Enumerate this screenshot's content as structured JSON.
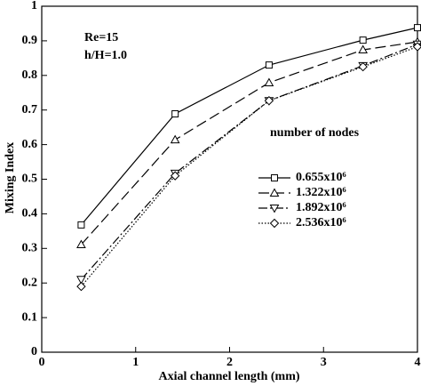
{
  "chart_data": {
    "type": "line",
    "annotations": [
      "Re=15",
      "h/H=1.0"
    ],
    "legend_title": "number of nodes",
    "x_label": "Axial channel length (mm)",
    "y_label": "Mixing Index",
    "xlim": [
      0,
      4
    ],
    "xticks": [
      0,
      1,
      2,
      3,
      4
    ],
    "ylim": [
      0,
      1
    ],
    "yticks": [
      0,
      0.1,
      0.2,
      0.3,
      0.4,
      0.5,
      0.6,
      0.7,
      0.8,
      0.9,
      1
    ],
    "x": [
      0.42,
      1.42,
      2.42,
      3.42,
      4
    ],
    "series": [
      {
        "name": "0.655x10⁶",
        "color": "#000000",
        "dash": "solid",
        "marker": "square",
        "values": [
          0.368,
          0.689,
          0.83,
          0.902,
          0.938
        ]
      },
      {
        "name": "1.322x10⁶",
        "color": "#000000",
        "dash": "dashed",
        "marker": "triangle-up",
        "values": [
          0.311,
          0.614,
          0.779,
          0.874,
          0.897
        ]
      },
      {
        "name": "1.892x10⁶",
        "color": "#000000",
        "dash": "dashdot",
        "marker": "triangle-down",
        "values": [
          0.21,
          0.517,
          0.727,
          0.828,
          0.89
        ]
      },
      {
        "name": "2.536x10⁶",
        "color": "#000000",
        "dash": "dotted",
        "marker": "diamond",
        "values": [
          0.19,
          0.51,
          0.727,
          0.825,
          0.883
        ]
      }
    ]
  }
}
